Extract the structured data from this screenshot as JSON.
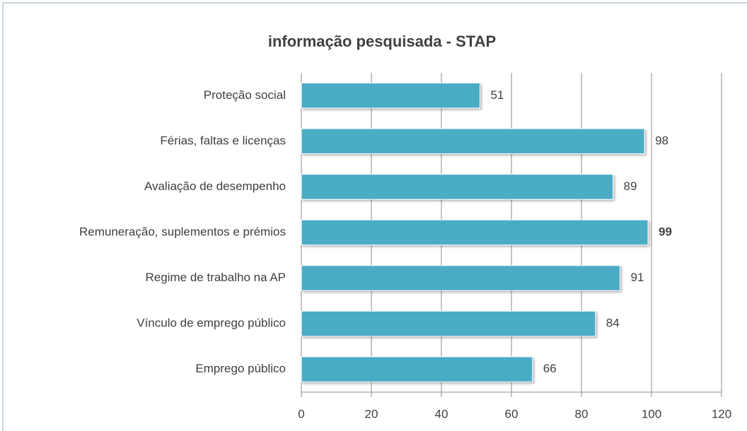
{
  "chart_data": {
    "type": "bar",
    "orientation": "horizontal",
    "title": "informação pesquisada - STAP",
    "categories": [
      "Proteção social",
      "Férias, faltas e licenças",
      "Avaliação de desempenho",
      "Remuneração, suplementos e prémios",
      "Regime de trabalho na AP",
      "Vínculo de emprego público",
      "Emprego público"
    ],
    "values": [
      51,
      98,
      89,
      99,
      91,
      84,
      66
    ],
    "color": "#4bacc6",
    "bold_value_index": 3,
    "xlim": [
      0,
      120
    ],
    "xticks": [
      0,
      20,
      40,
      60,
      80,
      100,
      120
    ],
    "grid": true
  }
}
